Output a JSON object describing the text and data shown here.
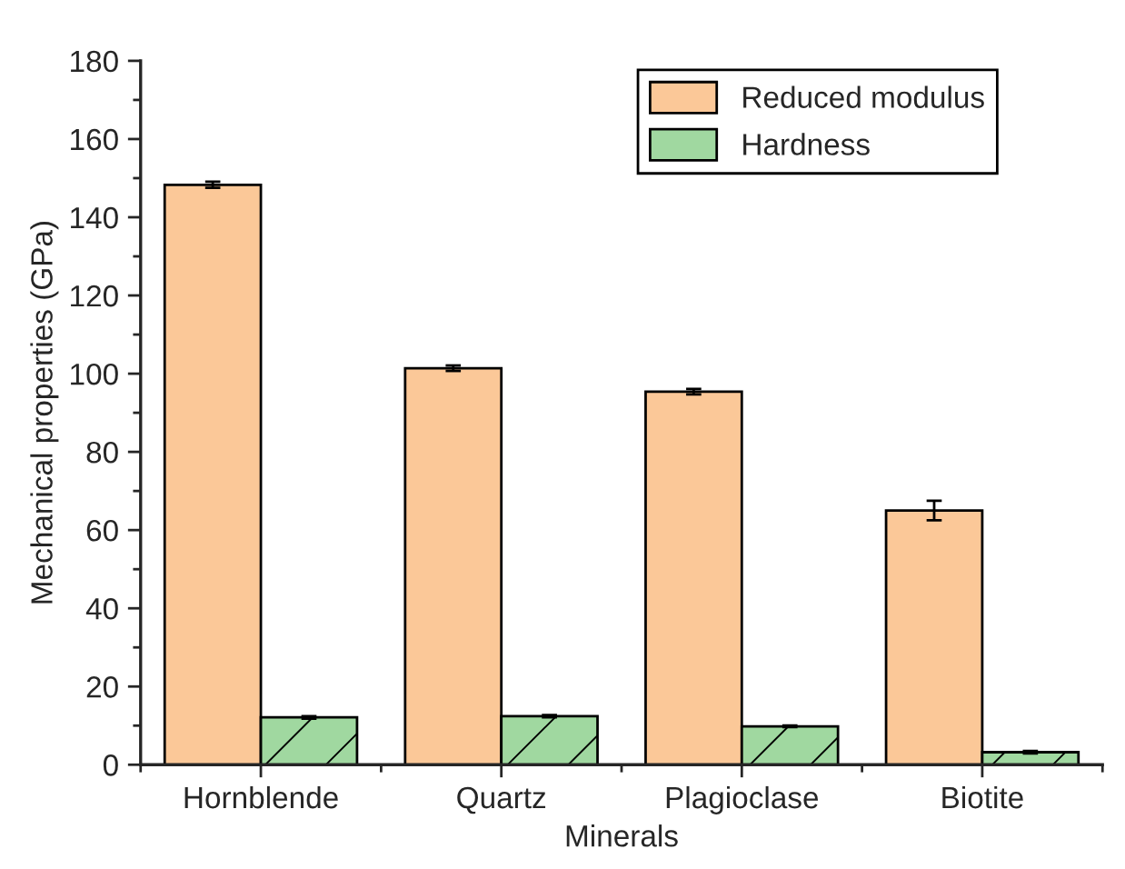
{
  "chart_data": {
    "type": "bar",
    "xlabel": "Minerals",
    "ylabel": "Mechanical properties (GPa)",
    "categories": [
      "Hornblende",
      "Quartz",
      "Plagioclase",
      "Biotite"
    ],
    "series": [
      {
        "name": "Reduced modulus",
        "color": "#fbc898",
        "values": [
          148.3,
          101.4,
          95.4,
          65.0
        ],
        "errors": [
          0.8,
          0.7,
          0.7,
          2.5
        ]
      },
      {
        "name": "Hardness",
        "color": "#a0d8a0",
        "values": [
          12.1,
          12.4,
          9.8,
          3.2
        ],
        "errors": [
          0.3,
          0.3,
          0.2,
          0.3
        ]
      }
    ],
    "ylim": [
      0,
      180
    ],
    "yticks": [
      0,
      20,
      40,
      60,
      80,
      100,
      120,
      140,
      160,
      180
    ],
    "grid": false,
    "legend": "top right"
  }
}
